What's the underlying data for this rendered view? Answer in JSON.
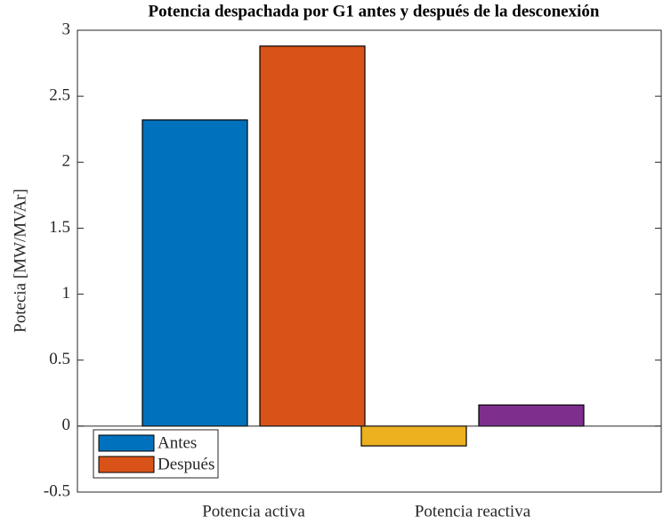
{
  "chart_data": {
    "type": "bar",
    "title": "Potencia despachada por G1 antes y después de la desconexión",
    "y_label": "Potecia [MW/MVAr]",
    "categories": [
      "Potencia activa",
      "Potencia reactiva"
    ],
    "series": [
      {
        "name": "Antes",
        "color": "#0072bd",
        "colors": [
          "#0072bd",
          "#edb120"
        ],
        "values": [
          2.32,
          -0.15
        ]
      },
      {
        "name": "Después",
        "color": "#d95319",
        "colors": [
          "#d95319",
          "#7e2f8e"
        ],
        "values": [
          2.88,
          0.16
        ]
      }
    ],
    "ylim": [
      -0.5,
      3
    ],
    "yticks": [
      -0.5,
      0,
      0.5,
      1,
      1.5,
      2,
      2.5,
      3
    ],
    "legend": "lower left"
  }
}
